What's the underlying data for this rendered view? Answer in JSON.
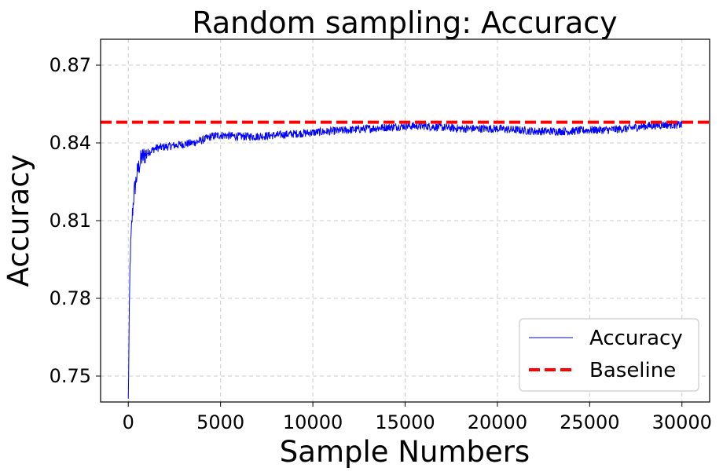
{
  "chart_data": {
    "type": "line",
    "title": "Random sampling: Accuracy",
    "xlabel": "Sample Numbers",
    "ylabel": "Accuracy",
    "xlim": [
      -1500,
      31500
    ],
    "ylim": [
      0.74,
      0.88
    ],
    "xticks": [
      0,
      5000,
      10000,
      15000,
      20000,
      25000,
      30000
    ],
    "xtick_labels": [
      "0",
      "5000",
      "10000",
      "15000",
      "20000",
      "25000",
      "30000"
    ],
    "yticks": [
      0.75,
      0.78,
      0.81,
      0.84,
      0.87
    ],
    "ytick_labels": [
      "0.75",
      "0.78",
      "0.81",
      "0.84",
      "0.87"
    ],
    "grid": true,
    "legend_position": "lower-right",
    "series": [
      {
        "name": "Accuracy",
        "color": "#0000ff",
        "style": "solid",
        "x": [
          0,
          50,
          100,
          200,
          300,
          500,
          700,
          1000,
          1500,
          2000,
          2500,
          3000,
          3500,
          4000,
          4500,
          5000,
          6000,
          7000,
          8000,
          9000,
          10000,
          11000,
          12000,
          13000,
          14000,
          15000,
          16000,
          17000,
          18000,
          19000,
          20000,
          21000,
          22000,
          23000,
          24000,
          25000,
          26000,
          27000,
          28000,
          29000,
          30000
        ],
        "y": [
          0.74,
          0.77,
          0.795,
          0.81,
          0.82,
          0.829,
          0.834,
          0.836,
          0.838,
          0.8385,
          0.839,
          0.8395,
          0.84,
          0.841,
          0.8425,
          0.843,
          0.8425,
          0.8425,
          0.843,
          0.8435,
          0.844,
          0.8445,
          0.845,
          0.8455,
          0.846,
          0.8465,
          0.8465,
          0.846,
          0.8455,
          0.8455,
          0.8455,
          0.845,
          0.8445,
          0.8445,
          0.8445,
          0.845,
          0.845,
          0.8455,
          0.8465,
          0.847,
          0.847
        ]
      },
      {
        "name": "Baseline",
        "color": "#ff0000",
        "style": "dashed",
        "constant_y": 0.848
      }
    ]
  }
}
